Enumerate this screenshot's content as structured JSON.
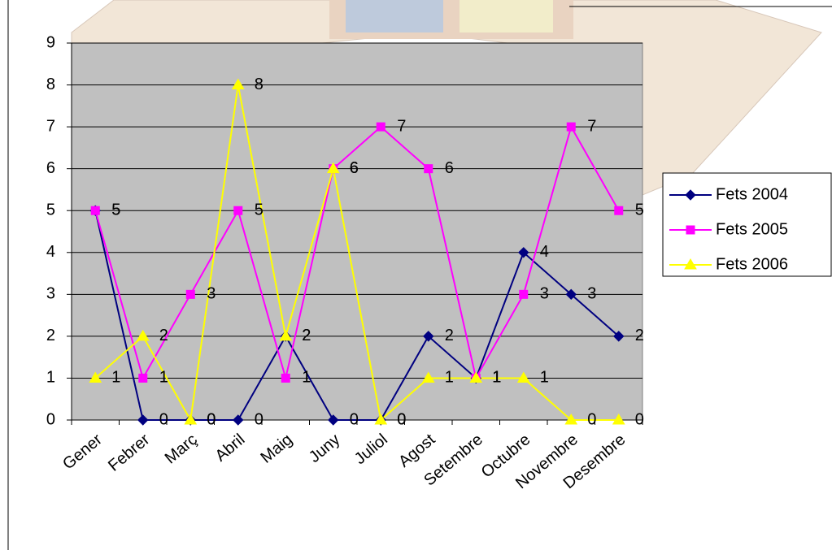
{
  "chart_data": {
    "type": "line",
    "categories": [
      "Gener",
      "Febrer",
      "Març",
      "Abril",
      "Maig",
      "Juny",
      "Juliol",
      "Agost",
      "Setembre",
      "Octubre",
      "Novembre",
      "Desembre"
    ],
    "series": [
      {
        "name": "Fets 2004",
        "color": "#000080",
        "marker": "diamond",
        "values": [
          5,
          0,
          0,
          0,
          2,
          0,
          0,
          2,
          1,
          4,
          3,
          2
        ]
      },
      {
        "name": "Fets 2005",
        "color": "#ff00ff",
        "marker": "square",
        "values": [
          5,
          1,
          3,
          5,
          1,
          6,
          7,
          6,
          1,
          3,
          7,
          5
        ]
      },
      {
        "name": "Fets 2006",
        "color": "#ffff00",
        "marker": "triangle",
        "values": [
          1,
          2,
          0,
          8,
          2,
          6,
          0,
          1,
          1,
          1,
          0,
          0
        ]
      }
    ],
    "ylim": [
      0,
      9
    ],
    "yticks": [
      0,
      1,
      2,
      3,
      4,
      5,
      6,
      7,
      8,
      9
    ],
    "grid": true,
    "legend": "right",
    "plot_background": "#c0c0c0"
  }
}
